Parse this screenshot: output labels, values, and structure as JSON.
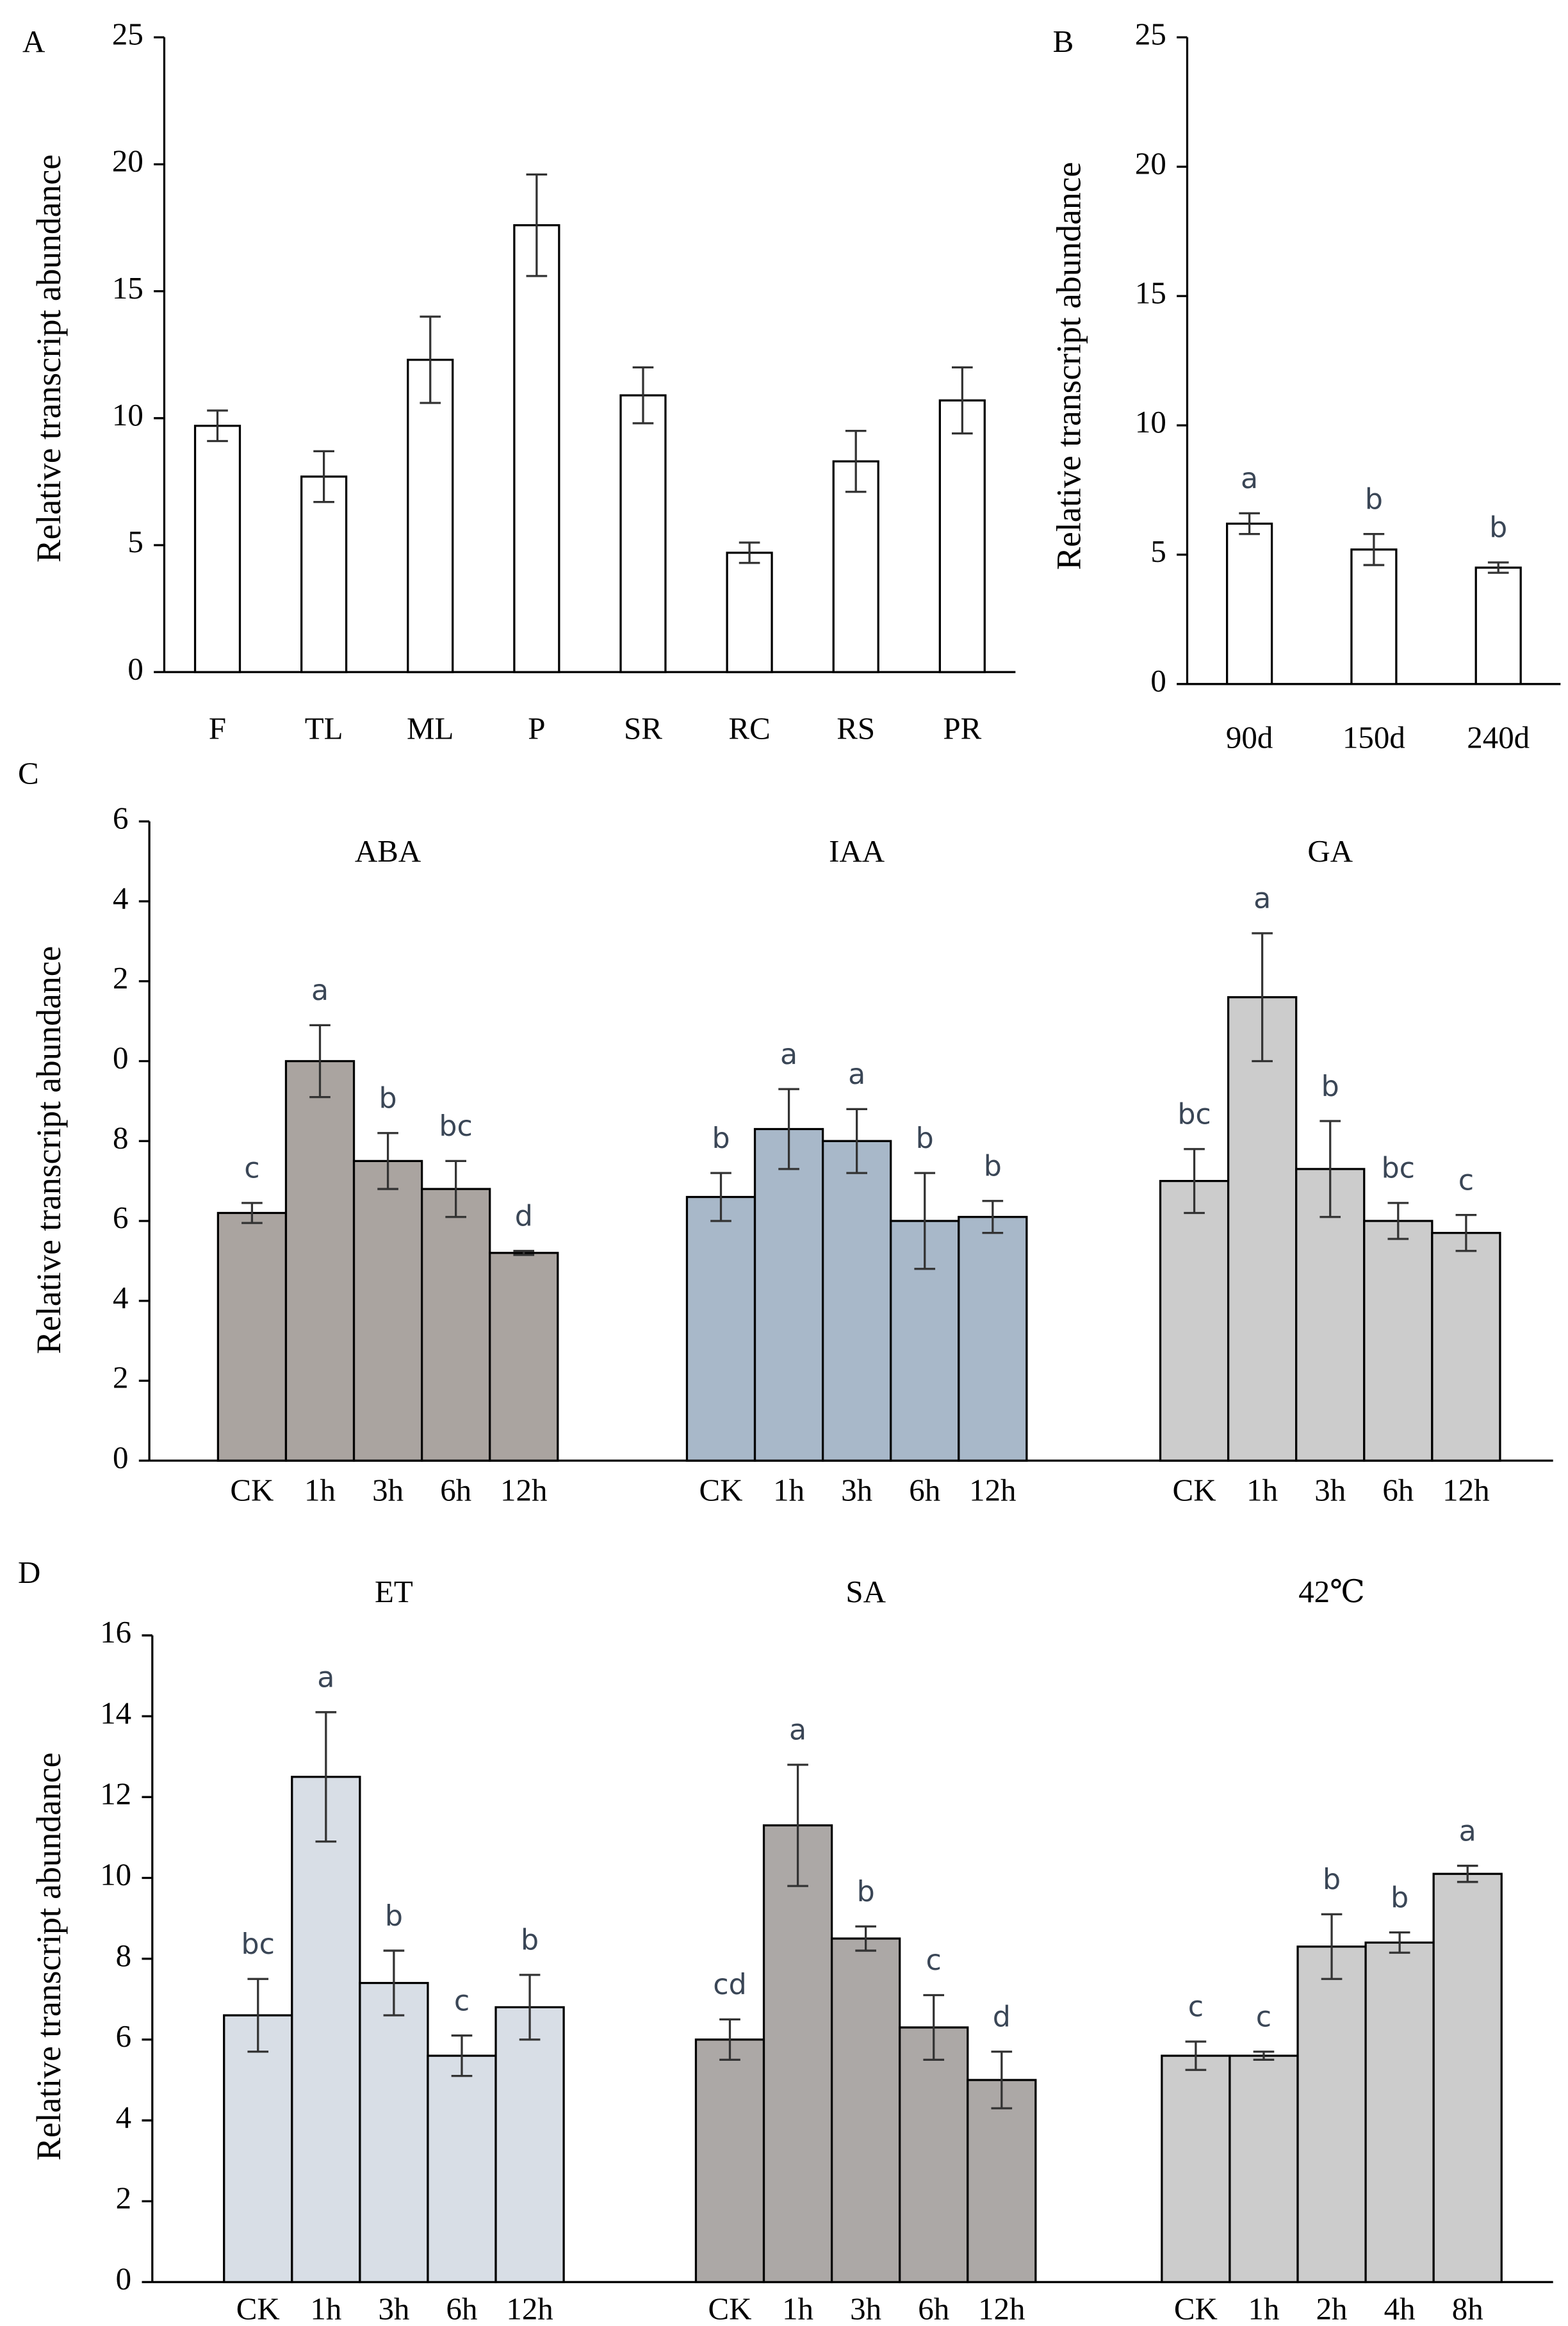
{
  "chart_data": [
    {
      "type": "bar",
      "panel": "A",
      "ylabel": "Relative  transcript abundance",
      "categories": [
        "F",
        "TL",
        "ML",
        "P",
        "SR",
        "RC",
        "RS",
        "PR"
      ],
      "values": [
        9.7,
        7.7,
        12.3,
        17.6,
        10.9,
        4.7,
        8.3,
        10.7
      ],
      "errors": [
        0.6,
        1.0,
        1.7,
        2.0,
        1.1,
        0.4,
        1.2,
        1.3
      ],
      "color": "#ffffff",
      "ylim": [
        0,
        25
      ],
      "yticks": [
        0,
        5,
        10,
        15,
        20,
        25
      ]
    },
    {
      "type": "bar",
      "panel": "B",
      "ylabel": "Relative  transcript abundance",
      "categories": [
        "90d",
        "150d",
        "240d"
      ],
      "values": [
        6.2,
        5.2,
        4.5
      ],
      "errors": [
        0.4,
        0.6,
        0.2
      ],
      "letters": [
        "a",
        "b",
        "b"
      ],
      "color": "#ffffff",
      "ylim": [
        0,
        25
      ],
      "yticks": [
        0,
        5,
        10,
        15,
        20,
        25
      ]
    },
    {
      "type": "bar",
      "panel": "C",
      "ylabel": "Relative transcript abundance",
      "ylim": [
        0,
        16
      ],
      "yticks": [
        0,
        2,
        4,
        6,
        8,
        {
          "value": 10,
          "label": "0"
        },
        {
          "value": 12,
          "label": "2"
        },
        {
          "value": 14,
          "label": "4"
        },
        {
          "value": 16,
          "label": "6"
        }
      ],
      "groups": [
        {
          "name": "ABA",
          "color": "#aaa4a0",
          "categories": [
            "CK",
            "1h",
            "3h",
            "6h",
            "12h"
          ],
          "values": [
            6.2,
            10.0,
            7.5,
            6.8,
            5.2
          ],
          "errors": [
            0.25,
            0.9,
            0.7,
            0.7,
            0.05
          ],
          "letters": [
            "c",
            "a",
            "b",
            "bc",
            "d"
          ]
        },
        {
          "name": "IAA",
          "color": "#a8b8c9",
          "categories": [
            "CK",
            "1h",
            "3h",
            "6h",
            "12h"
          ],
          "values": [
            6.6,
            8.3,
            8.0,
            6.0,
            6.1
          ],
          "errors": [
            0.6,
            1.0,
            0.8,
            1.2,
            0.4
          ],
          "letters": [
            "b",
            "a",
            "a",
            "b",
            "b"
          ]
        },
        {
          "name": "GA",
          "color": "#cccccc",
          "categories": [
            "CK",
            "1h",
            "3h",
            "6h",
            "12h"
          ],
          "values": [
            7.0,
            11.6,
            7.3,
            6.0,
            5.7
          ],
          "errors": [
            0.8,
            1.6,
            1.2,
            0.45,
            0.45
          ],
          "letters": [
            "bc",
            "a",
            "b",
            "bc",
            "c"
          ]
        }
      ]
    },
    {
      "type": "bar",
      "panel": "D",
      "ylabel": "Relative transcript abundance",
      "ylim": [
        0,
        16
      ],
      "yticks": [
        0,
        2,
        4,
        6,
        8,
        10,
        12,
        14,
        16
      ],
      "groups": [
        {
          "name": "ET",
          "color": "#d8dee6",
          "categories": [
            "CK",
            "1h",
            "3h",
            "6h",
            "12h"
          ],
          "values": [
            6.6,
            12.5,
            7.4,
            5.6,
            6.8
          ],
          "errors": [
            0.9,
            1.6,
            0.8,
            0.5,
            0.8
          ],
          "letters": [
            "bc",
            "a",
            "b",
            "c",
            "b"
          ]
        },
        {
          "name": "SA",
          "color": "#aca8a6",
          "categories": [
            "CK",
            "1h",
            "3h",
            "6h",
            "12h"
          ],
          "values": [
            6.0,
            11.3,
            8.5,
            6.3,
            5.0
          ],
          "errors": [
            0.5,
            1.5,
            0.3,
            0.8,
            0.7
          ],
          "letters": [
            "cd",
            "a",
            "b",
            "c",
            "d"
          ]
        },
        {
          "name": "42℃",
          "color": "#cccccc",
          "categories": [
            "CK",
            "1h",
            "2h",
            "4h",
            "8h"
          ],
          "values": [
            5.6,
            5.6,
            8.3,
            8.4,
            10.1
          ],
          "errors": [
            0.35,
            0.1,
            0.8,
            0.25,
            0.2
          ],
          "letters": [
            "c",
            "c",
            "b",
            "b",
            "a"
          ]
        }
      ]
    }
  ]
}
